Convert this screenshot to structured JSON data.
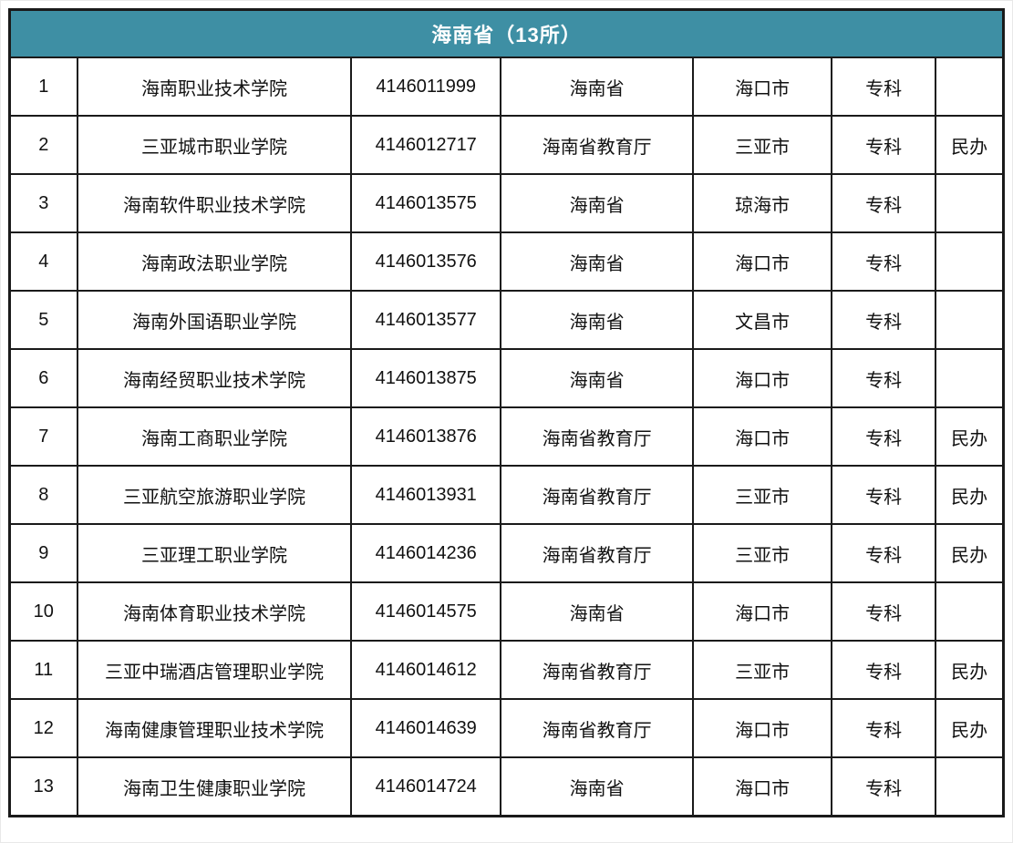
{
  "table": {
    "header": {
      "title": "海南省（13所）",
      "bg_color": "#3e8fa4",
      "text_color": "#ffffff"
    },
    "columns": [
      {
        "key": "index"
      },
      {
        "key": "school-name"
      },
      {
        "key": "school-code"
      },
      {
        "key": "authority"
      },
      {
        "key": "city"
      },
      {
        "key": "level"
      },
      {
        "key": "ownership"
      }
    ],
    "rows": [
      [
        "1",
        "海南职业技术学院",
        "4146011999",
        "海南省",
        "海口市",
        "专科",
        ""
      ],
      [
        "2",
        "三亚城市职业学院",
        "4146012717",
        "海南省教育厅",
        "三亚市",
        "专科",
        "民办"
      ],
      [
        "3",
        "海南软件职业技术学院",
        "4146013575",
        "海南省",
        "琼海市",
        "专科",
        ""
      ],
      [
        "4",
        "海南政法职业学院",
        "4146013576",
        "海南省",
        "海口市",
        "专科",
        ""
      ],
      [
        "5",
        "海南外国语职业学院",
        "4146013577",
        "海南省",
        "文昌市",
        "专科",
        ""
      ],
      [
        "6",
        "海南经贸职业技术学院",
        "4146013875",
        "海南省",
        "海口市",
        "专科",
        ""
      ],
      [
        "7",
        "海南工商职业学院",
        "4146013876",
        "海南省教育厅",
        "海口市",
        "专科",
        "民办"
      ],
      [
        "8",
        "三亚航空旅游职业学院",
        "4146013931",
        "海南省教育厅",
        "三亚市",
        "专科",
        "民办"
      ],
      [
        "9",
        "三亚理工职业学院",
        "4146014236",
        "海南省教育厅",
        "三亚市",
        "专科",
        "民办"
      ],
      [
        "10",
        "海南体育职业技术学院",
        "4146014575",
        "海南省",
        "海口市",
        "专科",
        ""
      ],
      [
        "11",
        "三亚中瑞酒店管理职业学院",
        "4146014612",
        "海南省教育厅",
        "三亚市",
        "专科",
        "民办"
      ],
      [
        "12",
        "海南健康管理职业技术学院",
        "4146014639",
        "海南省教育厅",
        "海口市",
        "专科",
        "民办"
      ],
      [
        "13",
        "海南卫生健康职业学院",
        "4146014724",
        "海南省",
        "海口市",
        "专科",
        ""
      ]
    ]
  }
}
